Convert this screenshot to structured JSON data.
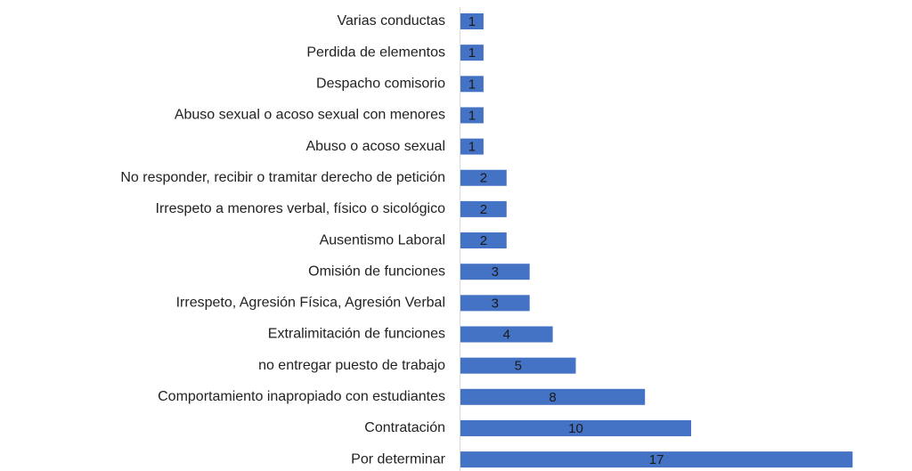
{
  "chart_data": {
    "type": "bar",
    "orientation": "horizontal",
    "color": "#4472c4",
    "categories": [
      "Varias conductas",
      "Perdida de elementos",
      "Despacho comisorio",
      "Abuso sexual o acoso sexual con menores",
      "Abuso o acoso sexual",
      "No responder, recibir o tramitar derecho de petición",
      "Irrespeto a menores verbal, físico o sicológico",
      "Ausentismo Laboral",
      "Omisión de funciones",
      "Irrespeto, Agresión Física, Agresión Verbal",
      "Extralimitación de funciones",
      "no entregar puesto de trabajo",
      "Comportamiento inapropiado con estudiantes",
      "Contratación",
      "Por determinar"
    ],
    "values": [
      1,
      1,
      1,
      1,
      1,
      2,
      2,
      2,
      3,
      3,
      4,
      5,
      8,
      10,
      17
    ]
  }
}
